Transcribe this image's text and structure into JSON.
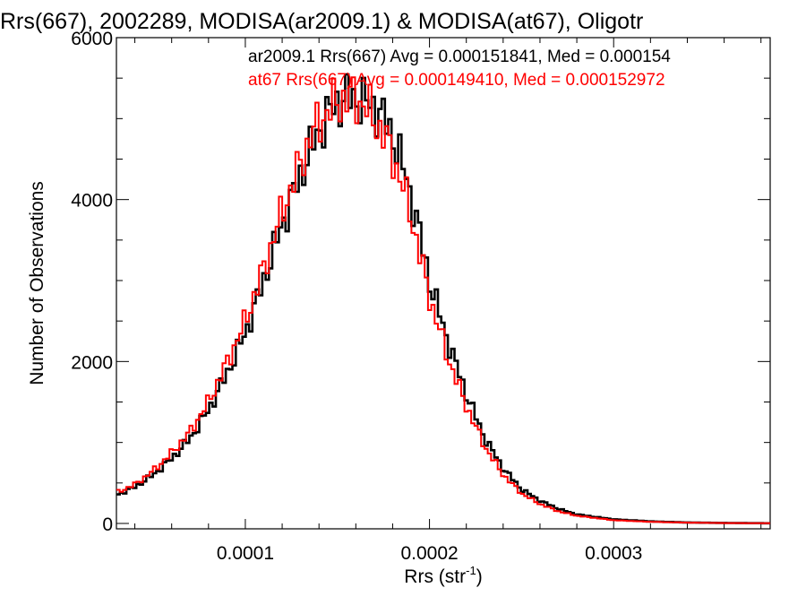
{
  "chart_data": {
    "type": "line",
    "title": "Rrs(667), 2002289, MODISA(ar2009.1) & MODISA(at67), Oligotr",
    "xlabel_main": "Rrs (str",
    "xlabel_sup": "-1",
    "xlabel_end": ")",
    "ylabel": "Number of Observations",
    "xlim": [
      3e-05,
      0.000385
    ],
    "ylim": [
      0,
      6000
    ],
    "x_ticks": [
      {
        "value": 0.0001,
        "label": "0.0001"
      },
      {
        "value": 0.0002,
        "label": "0.0002"
      },
      {
        "value": 0.0003,
        "label": "0.0003"
      }
    ],
    "y_ticks": [
      {
        "value": 0,
        "label": "0"
      },
      {
        "value": 2000,
        "label": "2000"
      },
      {
        "value": 4000,
        "label": "4000"
      },
      {
        "value": 6000,
        "label": "6000"
      }
    ],
    "legend": [
      {
        "text": "ar2009.1 Rrs(667) Avg = 0.000151841, Med = 0.000154",
        "color": "#000000"
      },
      {
        "text": "at67 Rrs(667) Avg = 0.000149410, Med = 0.000152972",
        "color": "#ff0000"
      }
    ],
    "series": [
      {
        "name": "ar2009.1",
        "color": "#000000",
        "x": [
          3e-05,
          4e-05,
          5e-05,
          6e-05,
          7e-05,
          8e-05,
          9e-05,
          0.0001,
          0.00011,
          0.00012,
          0.00013,
          0.000135,
          0.00014,
          0.000145,
          0.00015,
          0.000155,
          0.00016,
          0.000165,
          0.00017,
          0.000175,
          0.00018,
          0.000185,
          0.00019,
          0.000195,
          0.0002,
          0.00021,
          0.00022,
          0.00023,
          0.00024,
          0.00025,
          0.00026,
          0.00027,
          0.00028,
          0.0003,
          0.00032,
          0.00034,
          0.00036,
          0.000385
        ],
        "y": [
          350,
          450,
          600,
          800,
          1050,
          1400,
          1850,
          2350,
          3000,
          3700,
          4300,
          4600,
          4850,
          5050,
          5200,
          5250,
          5250,
          5200,
          5150,
          5000,
          4800,
          4450,
          4050,
          3550,
          3000,
          2250,
          1600,
          1050,
          680,
          420,
          280,
          180,
          110,
          50,
          25,
          12,
          6,
          2
        ]
      },
      {
        "name": "at67",
        "color": "#ff0000",
        "x": [
          3e-05,
          4e-05,
          5e-05,
          6e-05,
          7e-05,
          8e-05,
          9e-05,
          0.0001,
          0.00011,
          0.00012,
          0.00013,
          0.000135,
          0.00014,
          0.000145,
          0.00015,
          0.000155,
          0.00016,
          0.000165,
          0.00017,
          0.000175,
          0.00018,
          0.000185,
          0.00019,
          0.000195,
          0.0002,
          0.00021,
          0.00022,
          0.00023,
          0.00024,
          0.00025,
          0.00026,
          0.00027,
          0.00028,
          0.0003,
          0.00032,
          0.00034,
          0.00036,
          0.000385
        ],
        "y": [
          380,
          480,
          650,
          870,
          1130,
          1500,
          1980,
          2500,
          3150,
          3850,
          4450,
          4750,
          4950,
          5100,
          5200,
          5250,
          5250,
          5150,
          5000,
          4800,
          4550,
          4200,
          3800,
          3300,
          2800,
          2050,
          1450,
          950,
          600,
          370,
          240,
          150,
          95,
          40,
          20,
          10,
          5,
          2
        ]
      }
    ]
  }
}
